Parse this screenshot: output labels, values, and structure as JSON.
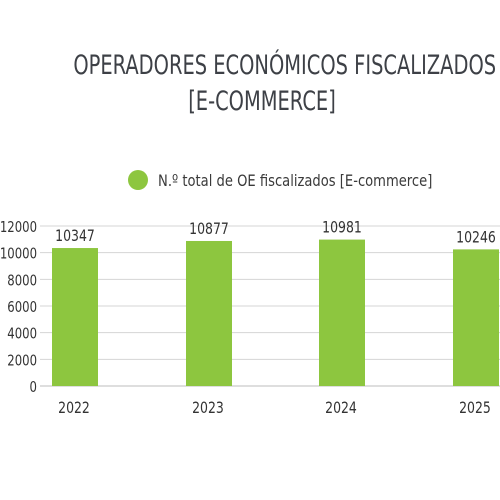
{
  "chart_data": {
    "type": "bar",
    "title_lines": [
      "OPERADORES ECONÓMICOS FISCALIZADOS",
      "[E-COMMERCE]"
    ],
    "categories": [
      "2022",
      "2023",
      "2024",
      "2025"
    ],
    "series": [
      {
        "name": "N.º total de OE fiscalizados [E-commerce]",
        "values": [
          10347,
          10877,
          10981,
          10246
        ],
        "color": "#8dc63f"
      }
    ],
    "data_labels": [
      "10347",
      "10877",
      "10981",
      "10246"
    ],
    "yticks": [
      "0",
      "2000",
      "4000",
      "6000",
      "8000",
      "10000",
      "12000"
    ],
    "ylim": [
      0,
      12000
    ],
    "grid": true,
    "legend_position": "top"
  }
}
